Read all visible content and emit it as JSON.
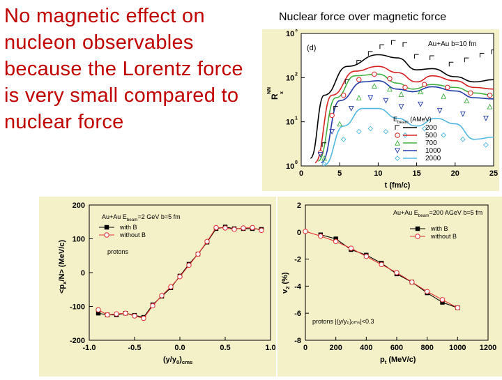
{
  "slide": {
    "left_text": "No magnetic effect on nucleon observables because the Lorentz force is very small compared to nuclear force",
    "right_title": "Nuclear force over magnetic force"
  },
  "chart_data": [
    {
      "id": "top",
      "type": "line",
      "panel_label": "(d)",
      "annotation": "Au+Au b=10 fm",
      "xlabel": "t (fm/c)",
      "ylabel": "R",
      "ylabel_sup": "NN",
      "ylabel_sub": "x",
      "xlim": [
        0,
        25
      ],
      "ylim": [
        1,
        1000
      ],
      "yscale": "log",
      "xticks": [
        0,
        5,
        10,
        15,
        20,
        25
      ],
      "yticks": [
        1,
        10,
        100,
        1000
      ],
      "ytick_labels": [
        "10",
        "10",
        "10",
        "10"
      ],
      "ytick_exps": [
        "0",
        "1",
        "2",
        "3"
      ],
      "legend_title": "E",
      "legend_title_sub": "beam",
      "legend_title_unit": "(AMeV)",
      "series": [
        {
          "name": "200",
          "color": "#000000",
          "points": [
            [
              1.2,
              1.5
            ],
            [
              3,
              40
            ],
            [
              6,
              180
            ],
            [
              10,
              330
            ],
            [
              12.5,
              280
            ],
            [
              15,
              150
            ],
            [
              17,
              160
            ],
            [
              20,
              105
            ],
            [
              22.5,
              80
            ],
            [
              25,
              90
            ]
          ]
        },
        {
          "name": "500",
          "color": "#d62020",
          "points": [
            [
              1.8,
              1.2
            ],
            [
              4,
              40
            ],
            [
              7,
              140
            ],
            [
              10,
              180
            ],
            [
              12.5,
              130
            ],
            [
              15,
              80
            ],
            [
              17,
              110
            ],
            [
              20,
              85
            ],
            [
              22.5,
              60
            ],
            [
              25,
              55
            ]
          ]
        },
        {
          "name": "700",
          "color": "#40b040",
          "points": [
            [
              2.2,
              1.3
            ],
            [
              4.5,
              35
            ],
            [
              7,
              110
            ],
            [
              10,
              120
            ],
            [
              12.5,
              75
            ],
            [
              14.5,
              55
            ],
            [
              17,
              70
            ],
            [
              20,
              60
            ],
            [
              22.5,
              45
            ],
            [
              25,
              40
            ]
          ]
        },
        {
          "name": "1000",
          "color": "#203aa8",
          "points": [
            [
              2.6,
              1.2
            ],
            [
              5,
              30
            ],
            [
              8,
              80
            ],
            [
              10,
              85
            ],
            [
              12.5,
              55
            ],
            [
              14.5,
              48
            ],
            [
              17,
              62
            ],
            [
              20,
              50
            ],
            [
              22.5,
              35
            ],
            [
              25,
              33
            ]
          ]
        },
        {
          "name": "2000",
          "color": "#50b8e0",
          "points": [
            [
              3,
              1.05
            ],
            [
              5.5,
              8
            ],
            [
              8,
              20
            ],
            [
              10,
              20
            ],
            [
              12.5,
              12
            ],
            [
              15,
              8
            ],
            [
              17.5,
              12
            ],
            [
              20,
              9
            ],
            [
              22.5,
              4
            ],
            [
              25,
              4.5
            ]
          ]
        }
      ],
      "markers": [
        {
          "series": 0,
          "symbol": "corner",
          "points": [
            [
              3,
              3
            ],
            [
              4.5,
              20
            ],
            [
              6,
              80
            ],
            [
              7.5,
              220
            ],
            [
              9,
              350
            ],
            [
              10.5,
              500
            ],
            [
              12,
              620
            ],
            [
              13.5,
              560
            ],
            [
              15,
              300
            ],
            [
              17,
              280
            ],
            [
              19.5,
              200
            ],
            [
              21.5,
              250
            ],
            [
              23.5,
              320
            ],
            [
              25,
              380
            ]
          ]
        },
        {
          "series": 1,
          "symbol": "circle",
          "points": [
            [
              2.5,
              2
            ],
            [
              4,
              14
            ],
            [
              5.5,
              40
            ],
            [
              7.5,
              90
            ],
            [
              9.5,
              120
            ],
            [
              11.5,
              95
            ],
            [
              13.5,
              60
            ],
            [
              16,
              70
            ],
            [
              19,
              60
            ],
            [
              22,
              45
            ],
            [
              24.5,
              40
            ]
          ]
        },
        {
          "series": 2,
          "symbol": "triangle",
          "points": [
            [
              3,
              1.5
            ],
            [
              5,
              9
            ],
            [
              7.5,
              35
            ],
            [
              9.5,
              65
            ],
            [
              11.5,
              55
            ],
            [
              13,
              42
            ],
            [
              15.5,
              48
            ],
            [
              18.5,
              38
            ],
            [
              21.5,
              30
            ],
            [
              24.5,
              22
            ]
          ]
        },
        {
          "series": 3,
          "symbol": "invtriangle",
          "points": [
            [
              2.5,
              1.8
            ],
            [
              4,
              6
            ],
            [
              6.5,
              20
            ],
            [
              9,
              35
            ],
            [
              11,
              30
            ],
            [
              13,
              22
            ],
            [
              15.5,
              25
            ],
            [
              18,
              18
            ],
            [
              21,
              15
            ],
            [
              24,
              12
            ]
          ]
        },
        {
          "series": 4,
          "symbol": "diamond",
          "points": [
            [
              3,
              1.1
            ],
            [
              5.5,
              4
            ],
            [
              7.5,
              6
            ],
            [
              9,
              7
            ],
            [
              11,
              6
            ],
            [
              13.5,
              5
            ],
            [
              16,
              7
            ],
            [
              18.5,
              5
            ],
            [
              21,
              4
            ],
            [
              24,
              3
            ]
          ]
        }
      ]
    },
    {
      "id": "bottom-left",
      "type": "line",
      "annotation_parts": [
        "Au+Au E",
        "beam",
        "=2 GeV b=5 fm"
      ],
      "label": "protons",
      "xlabel_parts": [
        "(y/y",
        "0",
        ")",
        "cms"
      ],
      "ylabel_parts": [
        "<p",
        "x",
        "/N> (MeV/c)"
      ],
      "xlim": [
        -1.0,
        1.0
      ],
      "ylim": [
        -200,
        200
      ],
      "xticks": [
        -1.0,
        -0.5,
        0.0,
        0.5,
        1.0
      ],
      "xtick_labels": [
        "-1.0",
        "-0.5",
        "0.0",
        "0.5",
        "1.0"
      ],
      "yticks": [
        -200,
        -100,
        0,
        100,
        200
      ],
      "series": [
        {
          "name": "with B",
          "color": "#000000",
          "marker": "square",
          "x": [
            -0.9,
            -0.8,
            -0.7,
            -0.6,
            -0.5,
            -0.4,
            -0.3,
            -0.2,
            -0.1,
            0.0,
            0.1,
            0.2,
            0.3,
            0.4,
            0.5,
            0.6,
            0.7,
            0.8,
            0.9
          ],
          "y": [
            -120,
            -125,
            -125,
            -120,
            -126,
            -132,
            -95,
            -70,
            -45,
            -10,
            25,
            55,
            90,
            130,
            135,
            130,
            130,
            130,
            128
          ]
        },
        {
          "name": "without B",
          "color": "#e03030",
          "marker": "circle",
          "x": [
            -0.9,
            -0.8,
            -0.7,
            -0.6,
            -0.5,
            -0.4,
            -0.3,
            -0.2,
            -0.1,
            0.0,
            0.1,
            0.2,
            0.3,
            0.4,
            0.5,
            0.6,
            0.7,
            0.8,
            0.9
          ],
          "y": [
            -110,
            -125,
            -122,
            -120,
            -128,
            -135,
            -98,
            -68,
            -42,
            -12,
            22,
            55,
            92,
            133,
            132,
            128,
            132,
            133,
            125
          ]
        }
      ]
    },
    {
      "id": "bottom-right",
      "type": "line",
      "annotation_parts": [
        "Au+Au E",
        "beam",
        "=200 AGeV b=5 fm"
      ],
      "label": "protons |(y/y₀)ₒₘₛ|<0.3",
      "xlabel_parts": [
        "p",
        "t",
        " (MeV/c)"
      ],
      "ylabel_parts": [
        "v",
        "2",
        " (%)"
      ],
      "xlim": [
        0,
        1200
      ],
      "ylim": [
        -8,
        2
      ],
      "xticks": [
        0,
        200,
        400,
        600,
        800,
        1000,
        1200
      ],
      "yticks": [
        -8,
        -6,
        -4,
        -2,
        0,
        2
      ],
      "series": [
        {
          "name": "with B",
          "color": "#000000",
          "marker": "square",
          "x": [
            100,
            200,
            300,
            400,
            500,
            600,
            700,
            800,
            900,
            1000
          ],
          "y": [
            -0.2,
            -0.5,
            -1.3,
            -1.7,
            -2.3,
            -3.1,
            -3.7,
            -4.5,
            -5.2,
            -5.6
          ]
        },
        {
          "name": "without B",
          "color": "#e03030",
          "marker": "circle",
          "x": [
            0,
            100,
            200,
            300,
            400,
            500,
            600,
            700,
            800,
            900,
            1000
          ],
          "y": [
            0.05,
            -0.3,
            -0.7,
            -1.2,
            -1.8,
            -2.4,
            -3.0,
            -3.7,
            -4.4,
            -5.0,
            -5.6
          ]
        }
      ]
    }
  ]
}
